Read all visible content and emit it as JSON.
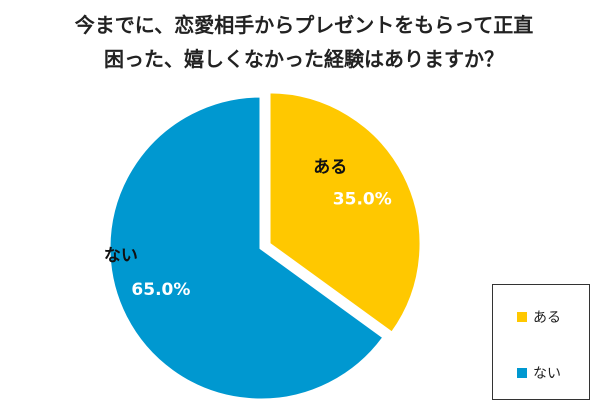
{
  "title_lines": [
    "今までに、恋愛相手からプレゼントをもらって正直",
    "困った、嬉しくなかった経験はありますか？"
  ],
  "chart_data": {
    "type": "pie",
    "labels": [
      "ある",
      "ない"
    ],
    "values": [
      35.0,
      65.0
    ],
    "value_labels": [
      "35.0%",
      "65.0%"
    ],
    "colors": [
      "#FFC800",
      "#0098D0"
    ],
    "legend_position": "bottom-right",
    "legend": [
      "ある",
      "ない"
    ]
  }
}
